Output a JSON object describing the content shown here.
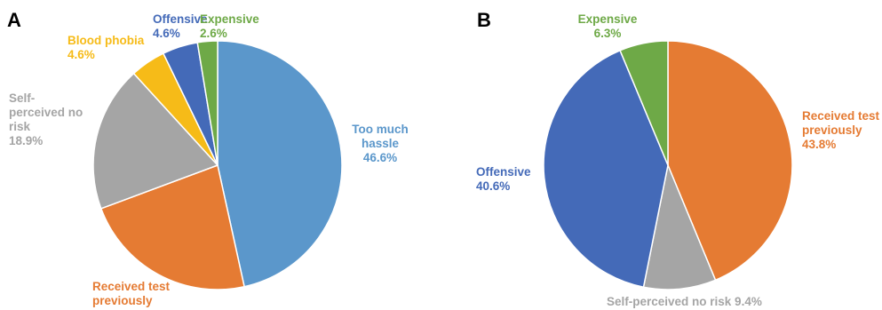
{
  "chart_data": [
    {
      "type": "pie",
      "panel": "A",
      "slices": [
        {
          "label": [
            "Too much",
            "hassle"
          ],
          "value": 46.6,
          "value_text": "46.6%",
          "color": "#5b97cb"
        },
        {
          "label": [
            "Received test",
            "previously"
          ],
          "value": 22.8,
          "value_text": "22.8%",
          "color": "#e57b33"
        },
        {
          "label": [
            "Self-",
            "perceived no",
            "risk"
          ],
          "value": 18.9,
          "value_text": "18.9%",
          "color": "#a5a5a5"
        },
        {
          "label": [
            "Blood phobia"
          ],
          "value": 4.6,
          "value_text": "4.6%",
          "color": "#f6bb18"
        },
        {
          "label": [
            "Offensive"
          ],
          "value": 4.6,
          "value_text": "4.6%",
          "color": "#446ab8"
        },
        {
          "label": [
            "Expensive"
          ],
          "value": 2.6,
          "value_text": "2.6%",
          "color": "#6ea947"
        }
      ]
    },
    {
      "type": "pie",
      "panel": "B",
      "slices": [
        {
          "label": [
            "Received test",
            "previously"
          ],
          "value": 43.8,
          "value_text": "43.8%",
          "color": "#e57b33"
        },
        {
          "label": [
            "Self-perceived no risk"
          ],
          "value": 9.4,
          "value_text": "9.4%",
          "color": "#a5a5a5",
          "inline": true
        },
        {
          "label": [
            "Offensive"
          ],
          "value": 40.6,
          "value_text": "40.6%",
          "color": "#446ab8"
        },
        {
          "label": [
            "Expensive"
          ],
          "value": 6.3,
          "value_text": "6.3%",
          "color": "#6ea947"
        }
      ]
    }
  ]
}
